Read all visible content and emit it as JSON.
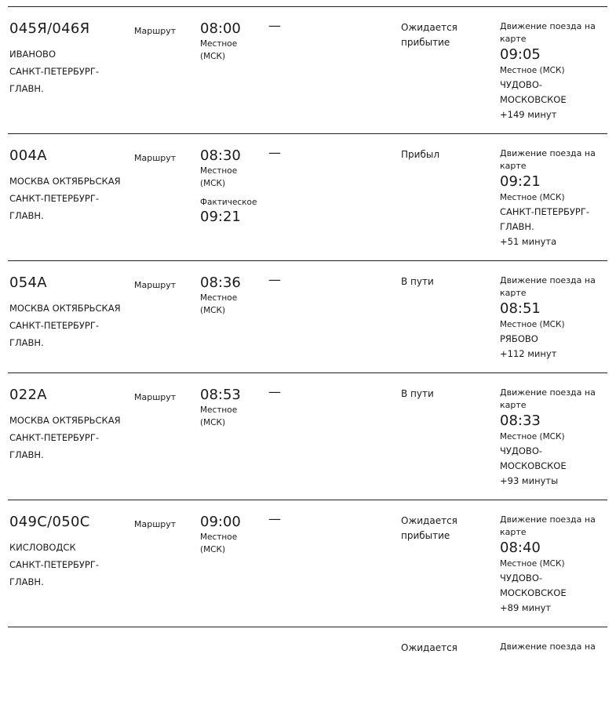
{
  "route_label": "Маршрут",
  "local_label": "Местное",
  "msk_label": "(МСК)",
  "actual_label": "Фактическое",
  "dash": "—",
  "move_label": "Движение поезда на карте",
  "rows": [
    {
      "number": "045Я/046Я",
      "from": "ИВАНОВО",
      "to": "САНКТ-ПЕТЕРБУРГ-ГЛАВН.",
      "time": "08:00",
      "status": "Ожидается прибытие",
      "move_time": "09:05",
      "move_place": "ЧУДОВО-МОСКОВСКОЕ",
      "delay": "+149 минут"
    },
    {
      "number": "004А",
      "from": "МОСКВА ОКТЯБРЬСКАЯ",
      "to": "САНКТ-ПЕТЕРБУРГ-ГЛАВН.",
      "time": "08:30",
      "actual": "09:21",
      "status": "Прибыл",
      "move_time": "09:21",
      "move_place": "САНКТ-ПЕТЕРБУРГ-ГЛАВН.",
      "delay": "+51 минута"
    },
    {
      "number": "054А",
      "from": "МОСКВА ОКТЯБРЬСКАЯ",
      "to": "САНКТ-ПЕТЕРБУРГ-ГЛАВН.",
      "time": "08:36",
      "status": "В пути",
      "move_time": "08:51",
      "move_place": "РЯБОВО",
      "delay": "+112 минут"
    },
    {
      "number": "022А",
      "from": "МОСКВА ОКТЯБРЬСКАЯ",
      "to": "САНКТ-ПЕТЕРБУРГ-ГЛАВН.",
      "time": "08:53",
      "status": "В пути",
      "move_time": "08:33",
      "move_place": "ЧУДОВО-МОСКОВСКОЕ",
      "delay": "+93 минуты"
    },
    {
      "number": "049С/050С",
      "from": "КИСЛОВОДСК",
      "to": "САНКТ-ПЕТЕРБУРГ-ГЛАВН.",
      "time": "09:00",
      "status": "Ожидается прибытие",
      "move_time": "08:40",
      "move_place": "ЧУДОВО-МОСКОВСКОЕ",
      "delay": "+89 минут"
    }
  ],
  "partial_row": {
    "status": "Ожидается",
    "move_label": "Движение поезда на"
  }
}
